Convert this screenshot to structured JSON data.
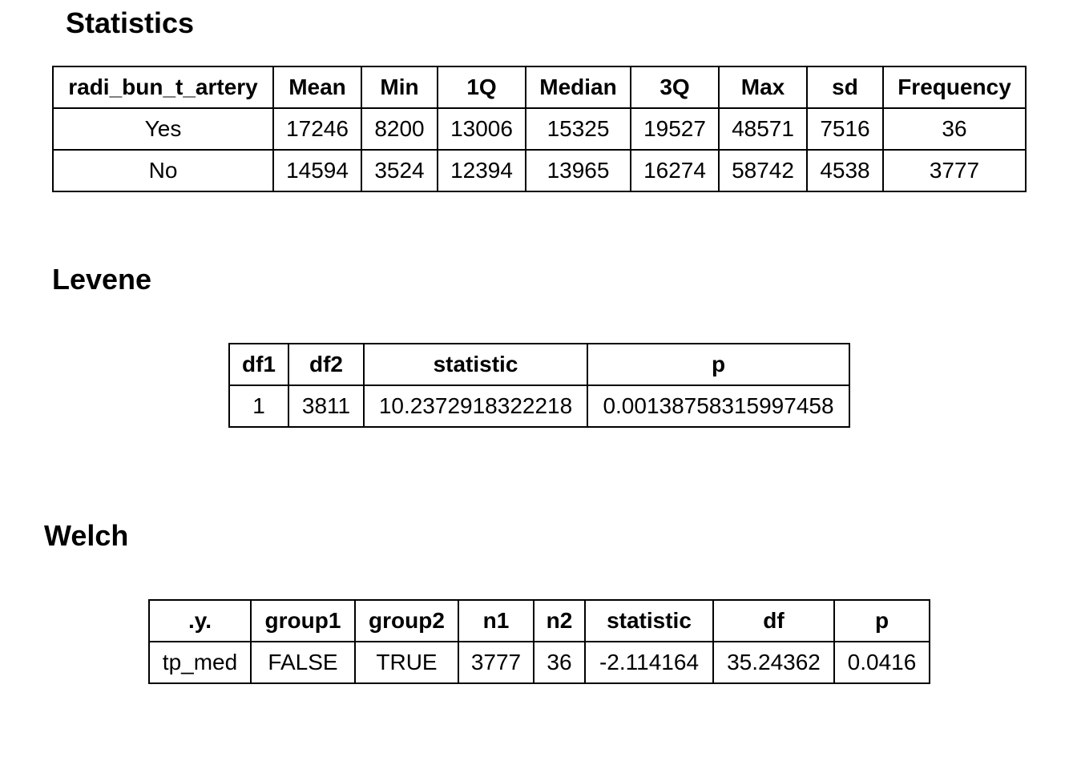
{
  "statistics": {
    "title": "Statistics",
    "headers": [
      "radi_bun_t_artery",
      "Mean",
      "Min",
      "1Q",
      "Median",
      "3Q",
      "Max",
      "sd",
      "Frequency"
    ],
    "rows": [
      [
        "Yes",
        "17246",
        "8200",
        "13006",
        "15325",
        "19527",
        "48571",
        "7516",
        "36"
      ],
      [
        "No",
        "14594",
        "3524",
        "12394",
        "13965",
        "16274",
        "58742",
        "4538",
        "3777"
      ]
    ]
  },
  "levene": {
    "title": "Levene",
    "headers": [
      "df1",
      "df2",
      "statistic",
      "p"
    ],
    "rows": [
      [
        "1",
        "3811",
        "10.2372918322218",
        "0.00138758315997458"
      ]
    ]
  },
  "welch": {
    "title": "Welch",
    "headers": [
      ".y.",
      "group1",
      "group2",
      "n1",
      "n2",
      "statistic",
      "df",
      "p"
    ],
    "rows": [
      [
        "tp_med",
        "FALSE",
        "TRUE",
        "3777",
        "36",
        "-2.114164",
        "35.24362",
        "0.0416"
      ]
    ]
  }
}
